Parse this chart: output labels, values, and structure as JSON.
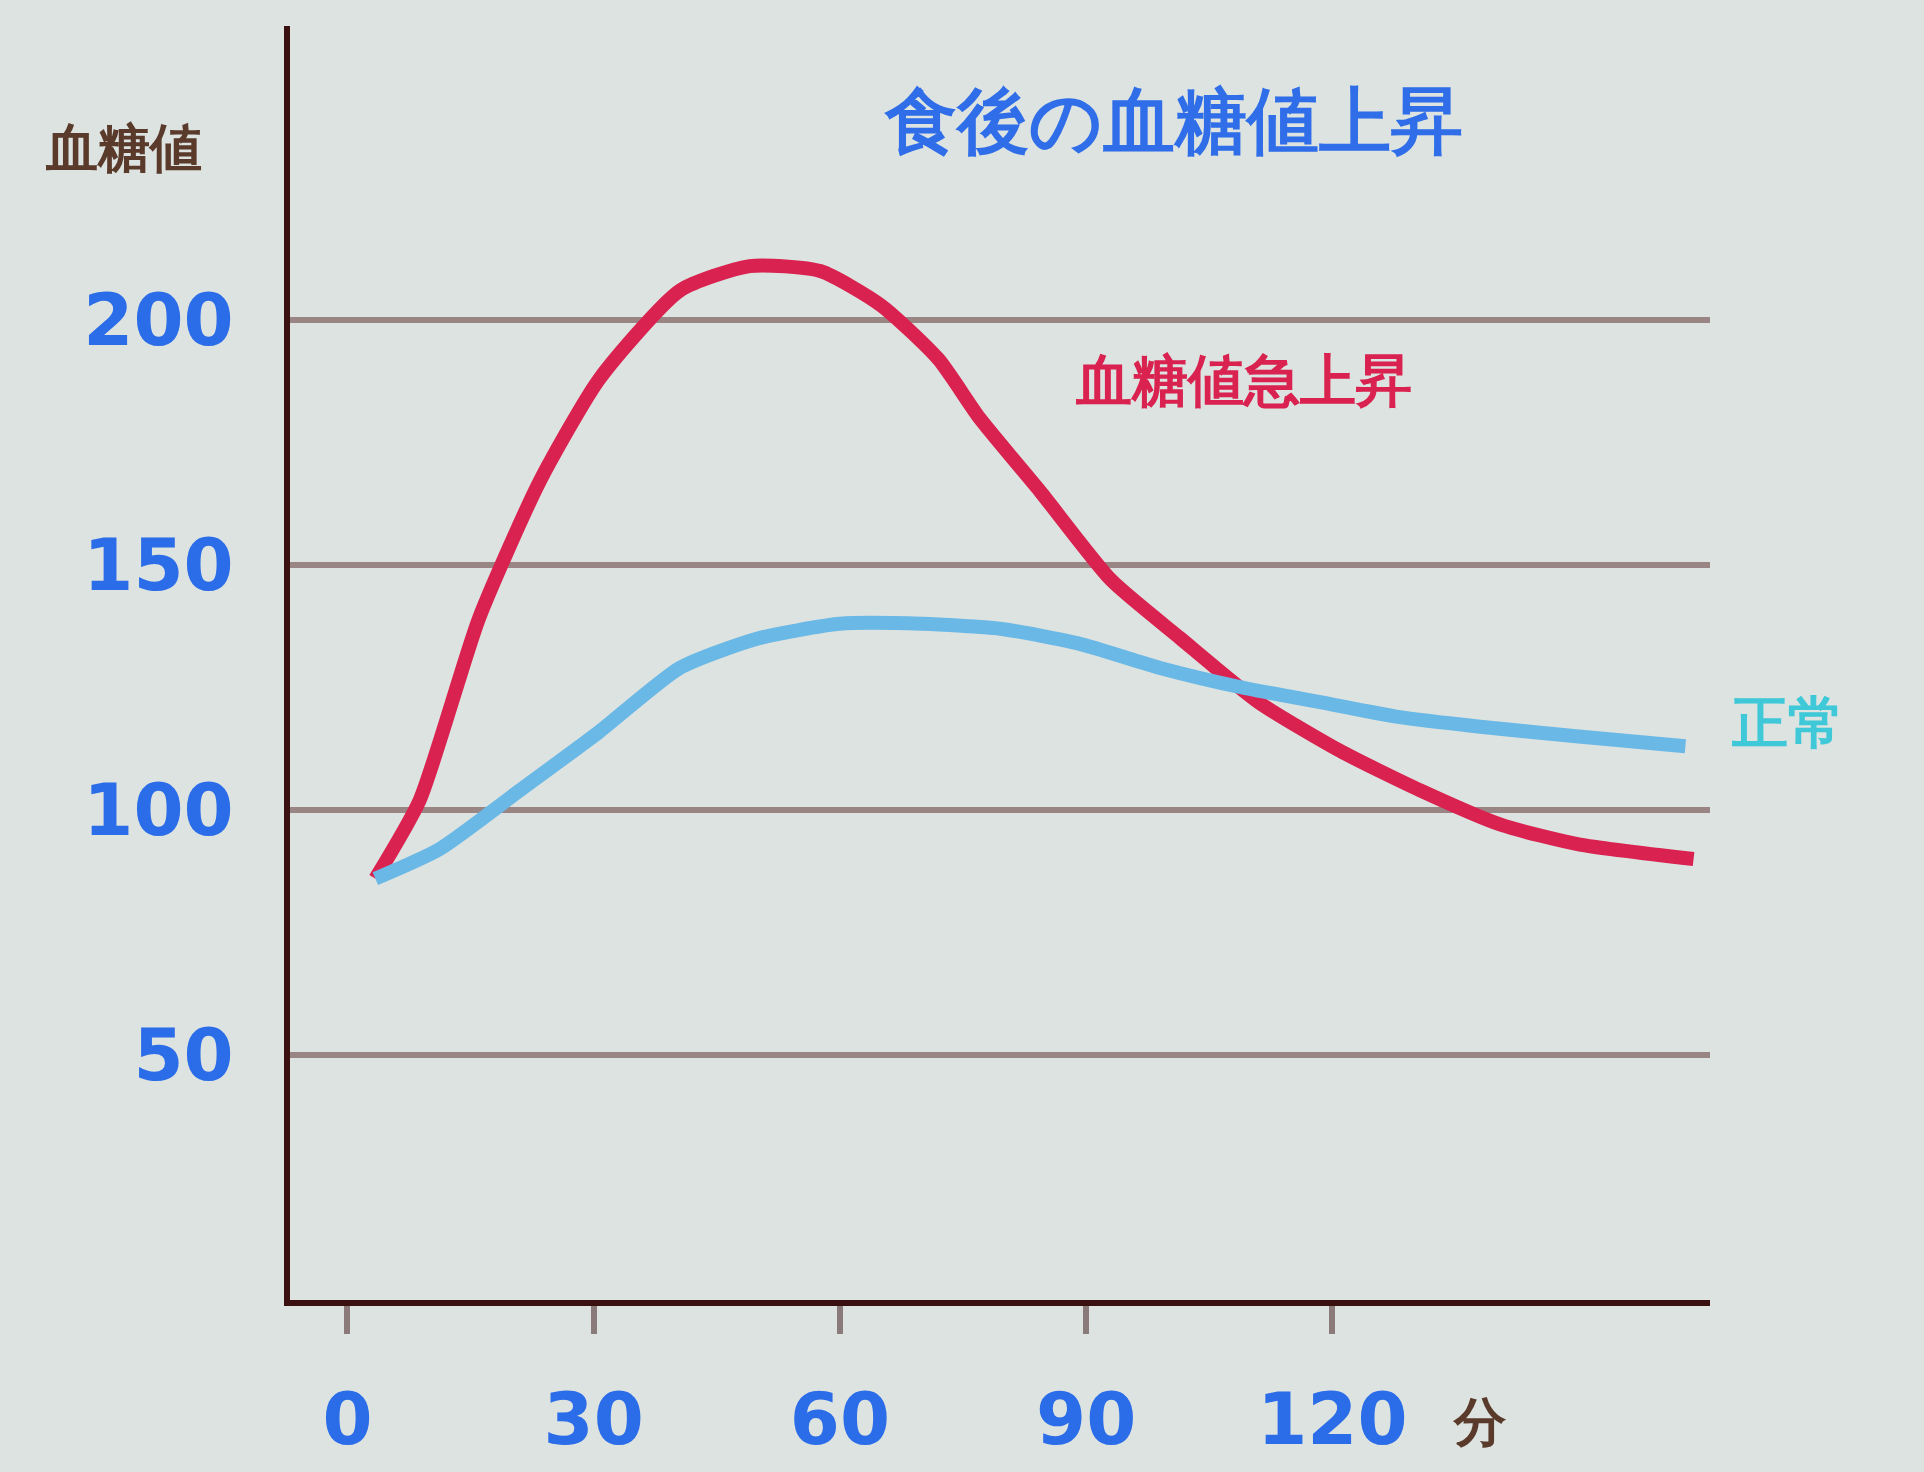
{
  "chart_data": {
    "type": "line",
    "title": "食後の血糖値上昇",
    "ylabel": "血糖値",
    "xlabel": "分",
    "xlim": [
      -7,
      166
    ],
    "xticks": [
      0,
      30,
      60,
      90,
      120
    ],
    "ylim": [
      0,
      260
    ],
    "yticks": [
      50,
      100,
      150,
      200
    ],
    "grid": "y",
    "legend": false,
    "marker": "none",
    "line_style": "solid",
    "series": [
      {
        "name": "血糖値急上昇",
        "color": "#d9224f",
        "x": [
          3.4,
          8.8,
          16,
          23.4,
          30.7,
          40.5,
          49,
          57.6,
          65,
          72,
          77,
          84.4,
          93,
          101.5,
          111,
          121,
          130.7,
          140.5,
          150,
          164
        ],
        "values": [
          86,
          102,
          139,
          167,
          188,
          206,
          211,
          210,
          203,
          192,
          180,
          165,
          147,
          135,
          122,
          112,
          104,
          97,
          93,
          90
        ]
      },
      {
        "name": "正常",
        "color": "#6ab8e6",
        "x": [
          3.4,
          11.2,
          21,
          30.7,
          40.5,
          50,
          60,
          70,
          79.5,
          89,
          99,
          109,
          118.5,
          128,
          138,
          150,
          163
        ],
        "values": [
          86,
          92,
          104,
          116,
          129,
          135,
          138,
          138,
          137,
          134,
          129,
          125,
          122,
          119,
          117,
          115,
          113
        ]
      }
    ]
  }
}
